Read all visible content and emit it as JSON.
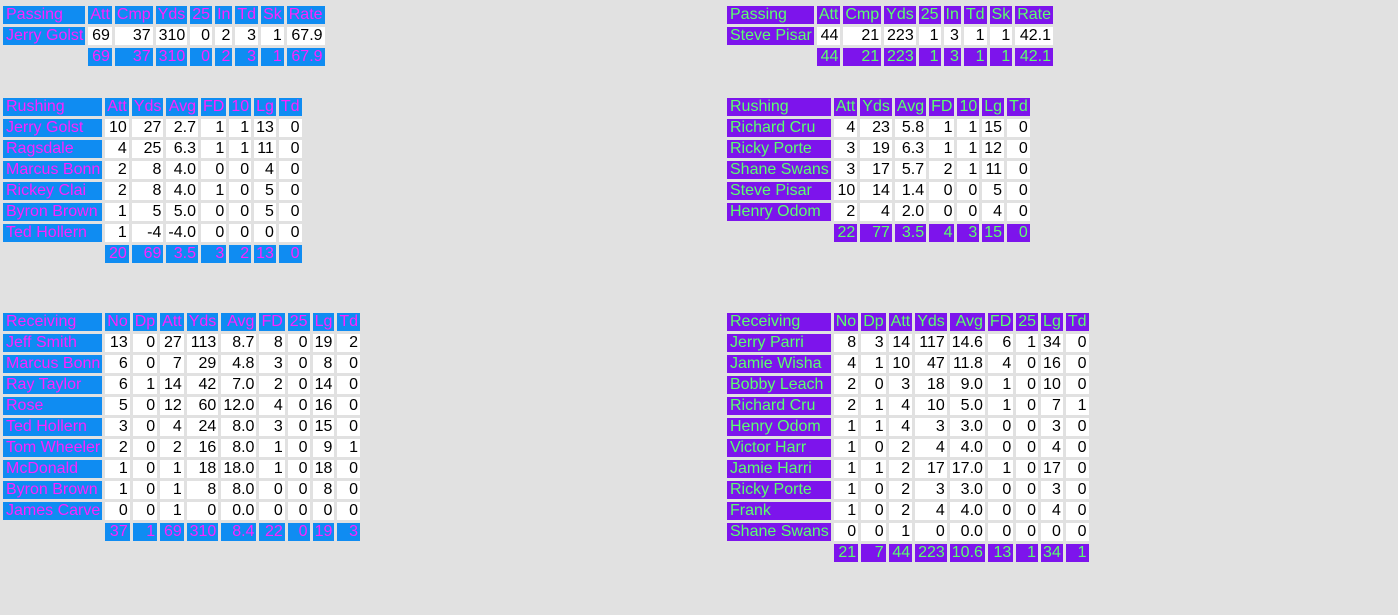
{
  "colors": {
    "home_bg": "#0f8cf2",
    "home_text": "#ff22ff",
    "away_bg": "#7d14ec",
    "away_text": "#5cff6e",
    "cell_bg": "#ffffff",
    "page_bg": "#e1e1e1"
  },
  "left": {
    "passing": {
      "title": "Passing",
      "cols": [
        "Att",
        "Cmp",
        "Yds",
        "25",
        "In",
        "Td",
        "Sk",
        "Rate"
      ],
      "rows": [
        {
          "name": "Jerry Golst",
          "v": [
            "69",
            "37",
            "310",
            "0",
            "2",
            "3",
            "1",
            "67.9"
          ]
        }
      ],
      "totals": [
        "69",
        "37",
        "310",
        "0",
        "2",
        "3",
        "1",
        "67.9"
      ]
    },
    "rushing": {
      "title": "Rushing",
      "cols": [
        "Att",
        "Yds",
        "Avg",
        "FD",
        "10",
        "Lg",
        "Td"
      ],
      "rows": [
        {
          "name": "Jerry Golst",
          "v": [
            "10",
            "27",
            "2.7",
            "1",
            "1",
            "13",
            "0"
          ]
        },
        {
          "name": "Ragsdale",
          "v": [
            "4",
            "25",
            "6.3",
            "1",
            "1",
            "11",
            "0"
          ]
        },
        {
          "name": "Marcus Bonn",
          "v": [
            "2",
            "8",
            "4.0",
            "0",
            "0",
            "4",
            "0"
          ]
        },
        {
          "name": "Rickey Clai",
          "v": [
            "2",
            "8",
            "4.0",
            "1",
            "0",
            "5",
            "0"
          ]
        },
        {
          "name": "Byron Brown",
          "v": [
            "1",
            "5",
            "5.0",
            "0",
            "0",
            "5",
            "0"
          ]
        },
        {
          "name": "Ted Hollern",
          "v": [
            "1",
            "-4",
            "-4.0",
            "0",
            "0",
            "0",
            "0"
          ]
        }
      ],
      "totals": [
        "20",
        "69",
        "3.5",
        "3",
        "2",
        "13",
        "0"
      ]
    },
    "receiving": {
      "title": "Receiving",
      "cols": [
        "No",
        "Dp",
        "Att",
        "Yds",
        "Avg",
        "FD",
        "25",
        "Lg",
        "Td"
      ],
      "rows": [
        {
          "name": "Jeff Smith",
          "v": [
            "13",
            "0",
            "27",
            "113",
            "8.7",
            "8",
            "0",
            "19",
            "2"
          ]
        },
        {
          "name": "Marcus Bonn",
          "v": [
            "6",
            "0",
            "7",
            "29",
            "4.8",
            "3",
            "0",
            "8",
            "0"
          ]
        },
        {
          "name": "Ray Taylor",
          "v": [
            "6",
            "1",
            "14",
            "42",
            "7.0",
            "2",
            "0",
            "14",
            "0"
          ]
        },
        {
          "name": "Rose",
          "v": [
            "5",
            "0",
            "12",
            "60",
            "12.0",
            "4",
            "0",
            "16",
            "0"
          ]
        },
        {
          "name": "Ted Hollern",
          "v": [
            "3",
            "0",
            "4",
            "24",
            "8.0",
            "3",
            "0",
            "15",
            "0"
          ]
        },
        {
          "name": "Tom Wheeler",
          "v": [
            "2",
            "0",
            "2",
            "16",
            "8.0",
            "1",
            "0",
            "9",
            "1"
          ]
        },
        {
          "name": "McDonald",
          "v": [
            "1",
            "0",
            "1",
            "18",
            "18.0",
            "1",
            "0",
            "18",
            "0"
          ]
        },
        {
          "name": "Byron Brown",
          "v": [
            "1",
            "0",
            "1",
            "8",
            "8.0",
            "0",
            "0",
            "8",
            "0"
          ]
        },
        {
          "name": "James Carve",
          "v": [
            "0",
            "0",
            "1",
            "0",
            "0.0",
            "0",
            "0",
            "0",
            "0"
          ]
        }
      ],
      "totals": [
        "37",
        "1",
        "69",
        "310",
        "8.4",
        "22",
        "0",
        "19",
        "3"
      ]
    }
  },
  "right": {
    "passing": {
      "title": "Passing",
      "cols": [
        "Att",
        "Cmp",
        "Yds",
        "25",
        "In",
        "Td",
        "Sk",
        "Rate"
      ],
      "rows": [
        {
          "name": "Steve Pisar",
          "v": [
            "44",
            "21",
            "223",
            "1",
            "3",
            "1",
            "1",
            "42.1"
          ]
        }
      ],
      "totals": [
        "44",
        "21",
        "223",
        "1",
        "3",
        "1",
        "1",
        "42.1"
      ]
    },
    "rushing": {
      "title": "Rushing",
      "cols": [
        "Att",
        "Yds",
        "Avg",
        "FD",
        "10",
        "Lg",
        "Td"
      ],
      "rows": [
        {
          "name": "Richard Cru",
          "v": [
            "4",
            "23",
            "5.8",
            "1",
            "1",
            "15",
            "0"
          ]
        },
        {
          "name": "Ricky Porte",
          "v": [
            "3",
            "19",
            "6.3",
            "1",
            "1",
            "12",
            "0"
          ]
        },
        {
          "name": "Shane Swans",
          "v": [
            "3",
            "17",
            "5.7",
            "2",
            "1",
            "11",
            "0"
          ]
        },
        {
          "name": "Steve Pisar",
          "v": [
            "10",
            "14",
            "1.4",
            "0",
            "0",
            "5",
            "0"
          ]
        },
        {
          "name": "Henry Odom",
          "v": [
            "2",
            "4",
            "2.0",
            "0",
            "0",
            "4",
            "0"
          ]
        }
      ],
      "totals": [
        "22",
        "77",
        "3.5",
        "4",
        "3",
        "15",
        "0"
      ]
    },
    "receiving": {
      "title": "Receiving",
      "cols": [
        "No",
        "Dp",
        "Att",
        "Yds",
        "Avg",
        "FD",
        "25",
        "Lg",
        "Td"
      ],
      "rows": [
        {
          "name": "Jerry Parri",
          "v": [
            "8",
            "3",
            "14",
            "117",
            "14.6",
            "6",
            "1",
            "34",
            "0"
          ]
        },
        {
          "name": "Jamie Wisha",
          "v": [
            "4",
            "1",
            "10",
            "47",
            "11.8",
            "4",
            "0",
            "16",
            "0"
          ]
        },
        {
          "name": "Bobby Leach",
          "v": [
            "2",
            "0",
            "3",
            "18",
            "9.0",
            "1",
            "0",
            "10",
            "0"
          ]
        },
        {
          "name": "Richard Cru",
          "v": [
            "2",
            "1",
            "4",
            "10",
            "5.0",
            "1",
            "0",
            "7",
            "1"
          ]
        },
        {
          "name": "Henry Odom",
          "v": [
            "1",
            "1",
            "4",
            "3",
            "3.0",
            "0",
            "0",
            "3",
            "0"
          ]
        },
        {
          "name": "Victor Harr",
          "v": [
            "1",
            "0",
            "2",
            "4",
            "4.0",
            "0",
            "0",
            "4",
            "0"
          ]
        },
        {
          "name": "Jamie Harri",
          "v": [
            "1",
            "1",
            "2",
            "17",
            "17.0",
            "1",
            "0",
            "17",
            "0"
          ]
        },
        {
          "name": "Ricky Porte",
          "v": [
            "1",
            "0",
            "2",
            "3",
            "3.0",
            "0",
            "0",
            "3",
            "0"
          ]
        },
        {
          "name": "Frank",
          "v": [
            "1",
            "0",
            "2",
            "4",
            "4.0",
            "0",
            "0",
            "4",
            "0"
          ]
        },
        {
          "name": "Shane Swans",
          "v": [
            "0",
            "0",
            "1",
            "0",
            "0.0",
            "0",
            "0",
            "0",
            "0"
          ]
        }
      ],
      "totals": [
        "21",
        "7",
        "44",
        "223",
        "10.6",
        "13",
        "1",
        "34",
        "1"
      ]
    }
  }
}
